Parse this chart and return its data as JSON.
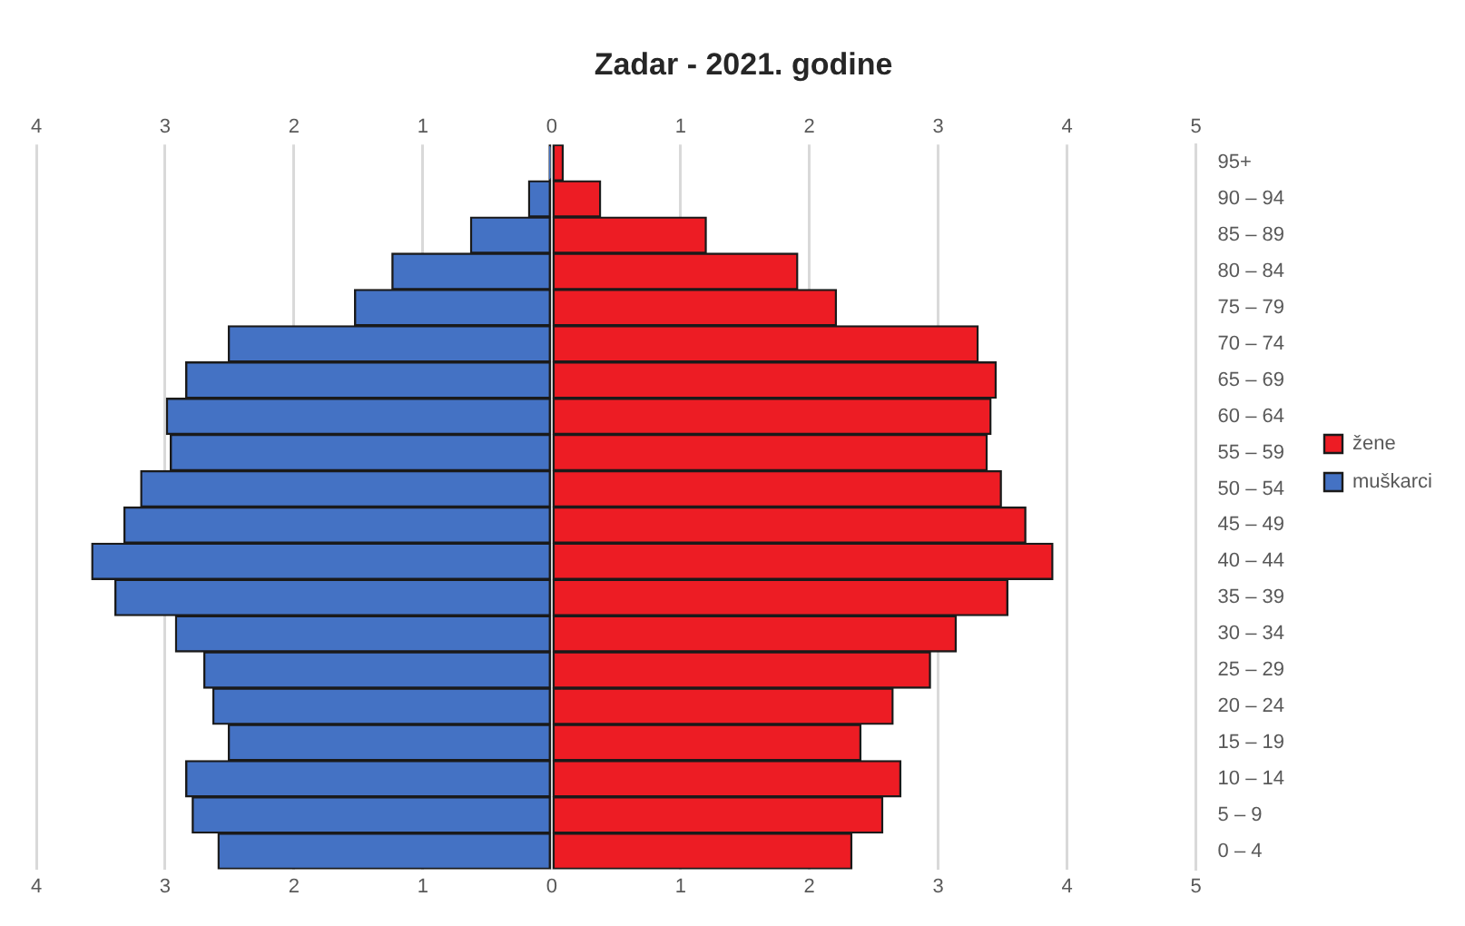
{
  "chart_data": {
    "type": "bar",
    "title": "Zadar - 2021. godine",
    "orientation": "horizontal",
    "stacked": true,
    "categories": [
      "95+",
      "90 – 94",
      "85 – 89",
      "80 – 84",
      "75 – 79",
      "70 – 74",
      "65 – 69",
      "60 – 64",
      "55 – 59",
      "50 – 54",
      "45 – 49",
      "40 – 44",
      "35 – 39",
      "30 – 34",
      "25 – 29",
      "20 – 24",
      "15 – 19",
      "10 – 14",
      "5 – 9",
      "0 – 4"
    ],
    "series": [
      {
        "name": "žene",
        "color": "#ed1c24",
        "values": [
          0.09,
          0.38,
          1.2,
          1.91,
          2.21,
          3.31,
          3.45,
          3.41,
          3.38,
          3.49,
          3.68,
          3.89,
          3.54,
          3.14,
          2.94,
          2.65,
          2.4,
          2.71,
          2.57,
          2.33
        ]
      },
      {
        "name": "muškarci",
        "color": "#4472c4",
        "values": [
          -0.02,
          -0.18,
          -0.63,
          -1.24,
          -1.53,
          -2.51,
          -2.84,
          -2.99,
          -2.96,
          -3.19,
          -3.32,
          -3.57,
          -3.39,
          -2.92,
          -2.7,
          -2.63,
          -2.51,
          -2.84,
          -2.79,
          -2.59
        ]
      }
    ],
    "xlim": [
      -4,
      5
    ],
    "xticks": [
      {
        "value": -4,
        "label": "4"
      },
      {
        "value": -3,
        "label": "3"
      },
      {
        "value": -2,
        "label": "2"
      },
      {
        "value": -1,
        "label": "1"
      },
      0,
      1,
      2,
      3,
      4,
      5
    ],
    "x2lim": [
      -4,
      5
    ],
    "x2ticks": [
      {
        "value": -4,
        "label": "4"
      },
      {
        "value": -3,
        "label": "3"
      },
      {
        "value": -2,
        "label": "2"
      },
      {
        "value": -1,
        "label": "1"
      },
      0,
      1,
      2,
      3,
      4,
      5
    ],
    "grid": "x",
    "legend": "right"
  }
}
